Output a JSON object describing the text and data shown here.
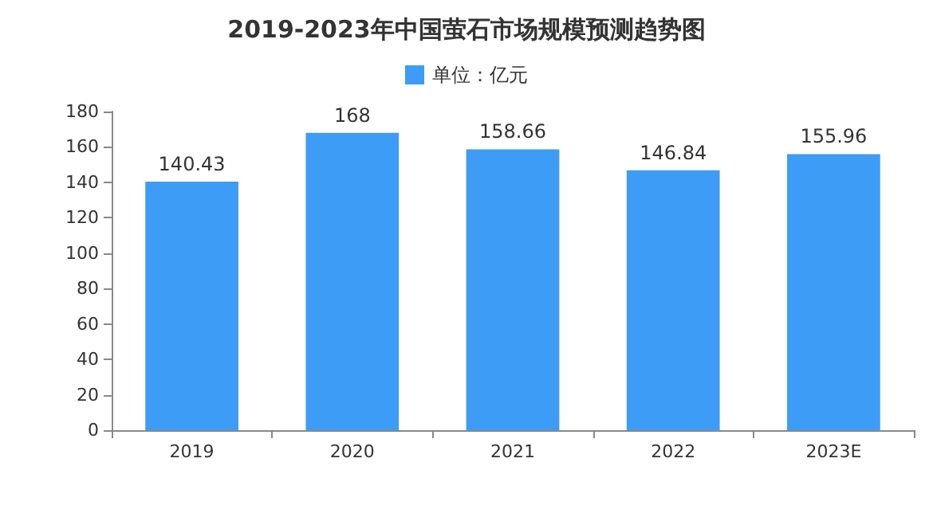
{
  "chart_data": {
    "type": "bar",
    "title": "2019-2023年中国萤石市场规模预测趋势图",
    "categories": [
      "2019",
      "2020",
      "2021",
      "2022",
      "2023E"
    ],
    "series": [
      {
        "name": "单位：亿元",
        "color": "#3d9cf5",
        "values": [
          140.43,
          168,
          158.66,
          146.84,
          155.96
        ]
      }
    ],
    "ylim": [
      0,
      180
    ],
    "yticks": [
      0,
      20,
      40,
      60,
      80,
      100,
      120,
      140,
      160,
      180
    ],
    "data_labels": true,
    "grid": false,
    "legend": "top"
  }
}
